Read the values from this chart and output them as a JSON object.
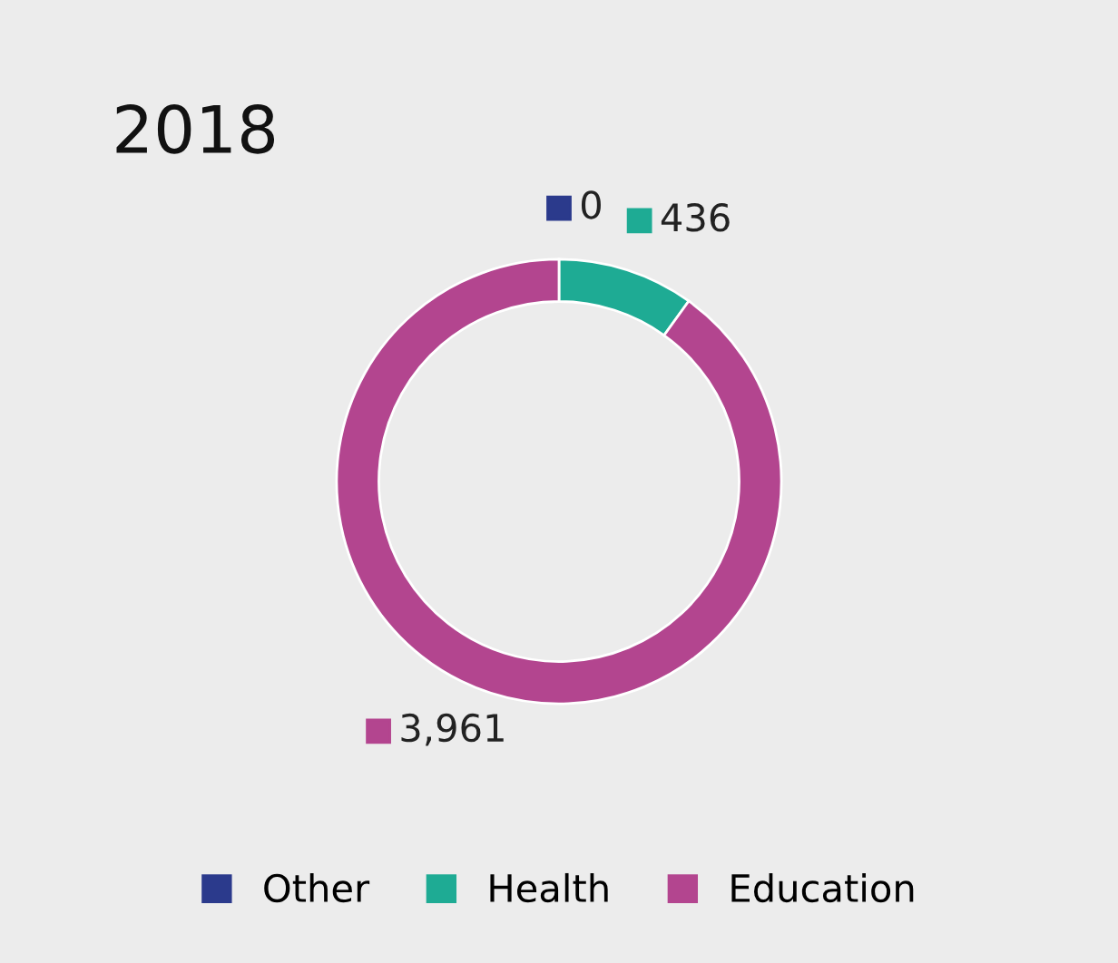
{
  "chart_data": {
    "type": "donut",
    "title": "2018",
    "categories": [
      "Other",
      "Health",
      "Education"
    ],
    "values": [
      0,
      436,
      3961
    ],
    "colors": [
      "#2b3a8c",
      "#1eab94",
      "#b3458f"
    ],
    "value_labels": [
      "0",
      "436",
      "3,961"
    ],
    "legend": "bottom"
  }
}
